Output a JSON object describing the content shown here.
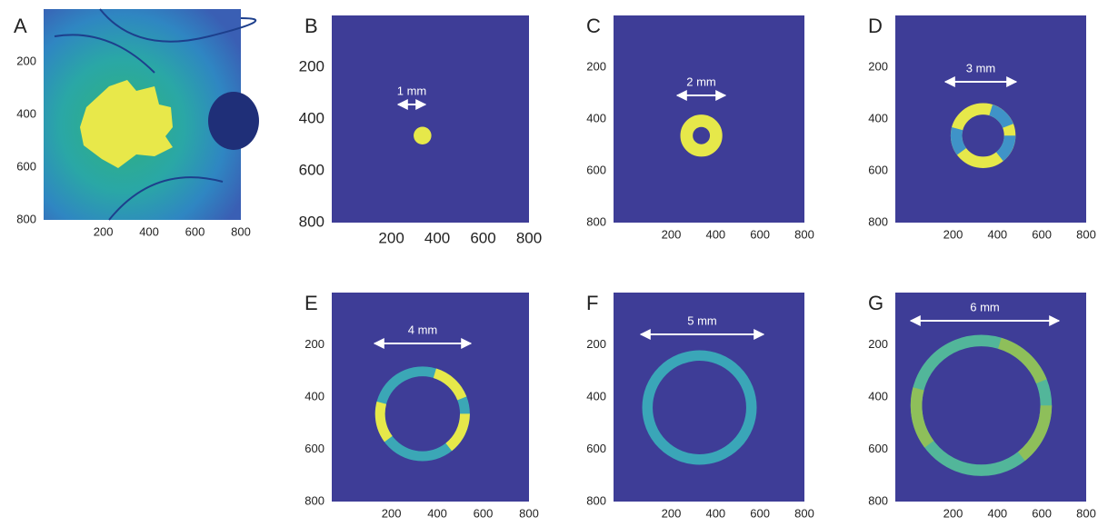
{
  "panels": [
    {
      "label": "A",
      "xticks": [
        200,
        400,
        600,
        800
      ],
      "yticks": [
        200,
        400,
        600,
        800
      ]
    },
    {
      "label": "B",
      "scale": "1 mm",
      "xticks": [
        200,
        400,
        600,
        800
      ],
      "yticks": [
        200,
        400,
        600,
        800
      ]
    },
    {
      "label": "C",
      "scale": "2 mm",
      "xticks": [
        200,
        400,
        600,
        800
      ],
      "yticks": [
        200,
        400,
        600,
        800
      ]
    },
    {
      "label": "D",
      "scale": "3 mm",
      "xticks": [
        200,
        400,
        600,
        800
      ],
      "yticks": [
        200,
        400,
        600,
        800
      ]
    },
    {
      "label": "E",
      "scale": "4 mm",
      "xticks": [
        200,
        400,
        600,
        800
      ],
      "yticks": [
        200,
        400,
        600,
        800
      ]
    },
    {
      "label": "F",
      "scale": "5 mm",
      "xticks": [
        200,
        400,
        600,
        800
      ],
      "yticks": [
        200,
        400,
        600,
        800
      ]
    },
    {
      "label": "G",
      "scale": "6 mm",
      "xticks": [
        200,
        400,
        600,
        800
      ],
      "yticks": [
        200,
        400,
        600,
        800
      ]
    }
  ]
}
